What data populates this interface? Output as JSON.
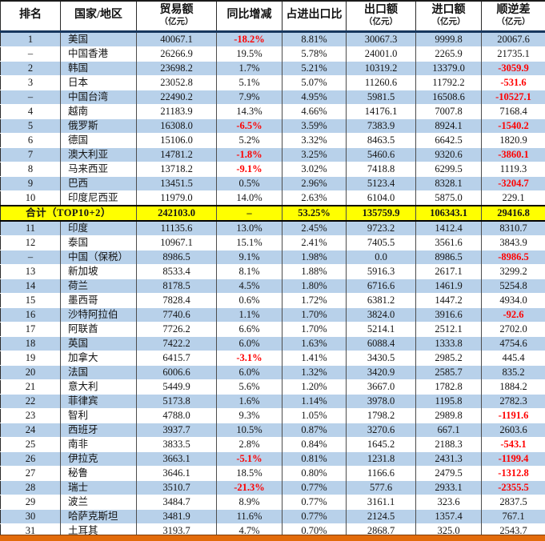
{
  "chart_data": {
    "type": "table",
    "columns": [
      {
        "label": "排名",
        "sub": ""
      },
      {
        "label": "国家/地区",
        "sub": ""
      },
      {
        "label": "贸易额",
        "sub": "（亿元）"
      },
      {
        "label": "同比增减",
        "sub": ""
      },
      {
        "label": "占进出口比",
        "sub": ""
      },
      {
        "label": "出口额",
        "sub": "（亿元）"
      },
      {
        "label": "进口额",
        "sub": "（亿元）"
      },
      {
        "label": "顺逆差",
        "sub": "（亿元）"
      }
    ],
    "rows": [
      {
        "rank": "1",
        "country": "美国",
        "values": [
          "40067.1",
          "-18.2%",
          "8.81%",
          "30067.3",
          "9999.8",
          "20067.6"
        ],
        "bg": "blue"
      },
      {
        "rank": "–",
        "country": "中国香港",
        "values": [
          "26266.9",
          "19.5%",
          "5.78%",
          "24001.0",
          "2265.9",
          "21735.1"
        ],
        "bg": "white"
      },
      {
        "rank": "2",
        "country": "韩国",
        "values": [
          "23698.2",
          "1.7%",
          "5.21%",
          "10319.2",
          "13379.0",
          "-3059.9"
        ],
        "bg": "blue"
      },
      {
        "rank": "3",
        "country": "日本",
        "values": [
          "23052.8",
          "5.1%",
          "5.07%",
          "11260.6",
          "11792.2",
          "-531.6"
        ],
        "bg": "white"
      },
      {
        "rank": "–",
        "country": "中国台湾",
        "values": [
          "22490.2",
          "7.9%",
          "4.95%",
          "5981.5",
          "16508.6",
          "-10527.1"
        ],
        "bg": "blue"
      },
      {
        "rank": "4",
        "country": "越南",
        "values": [
          "21183.9",
          "14.3%",
          "4.66%",
          "14176.1",
          "7007.8",
          "7168.4"
        ],
        "bg": "white"
      },
      {
        "rank": "5",
        "country": "俄罗斯",
        "values": [
          "16308.0",
          "-6.5%",
          "3.59%",
          "7383.9",
          "8924.1",
          "-1540.2"
        ],
        "bg": "blue"
      },
      {
        "rank": "6",
        "country": "德国",
        "values": [
          "15106.0",
          "5.2%",
          "3.32%",
          "8463.5",
          "6642.5",
          "1820.9"
        ],
        "bg": "white"
      },
      {
        "rank": "7",
        "country": "澳大利亚",
        "values": [
          "14781.2",
          "-1.8%",
          "3.25%",
          "5460.6",
          "9320.6",
          "-3860.1"
        ],
        "bg": "blue"
      },
      {
        "rank": "8",
        "country": "马来西亚",
        "values": [
          "13718.2",
          "-9.1%",
          "3.02%",
          "7418.8",
          "6299.5",
          "1119.3"
        ],
        "bg": "white"
      },
      {
        "rank": "9",
        "country": "巴西",
        "values": [
          "13451.5",
          "0.5%",
          "2.96%",
          "5123.4",
          "8328.1",
          "-3204.7"
        ],
        "bg": "blue"
      },
      {
        "rank": "10",
        "country": "印度尼西亚",
        "values": [
          "11979.0",
          "14.0%",
          "2.63%",
          "6104.0",
          "5875.0",
          "229.1"
        ],
        "bg": "white"
      },
      {
        "total": true,
        "label": "合计（TOP10+2）",
        "values": [
          "242103.0",
          "–",
          "53.25%",
          "135759.9",
          "106343.1",
          "29416.8"
        ],
        "bg": "yellow"
      },
      {
        "rank": "11",
        "country": "印度",
        "values": [
          "11135.6",
          "13.0%",
          "2.45%",
          "9723.2",
          "1412.4",
          "8310.7"
        ],
        "bg": "blue"
      },
      {
        "rank": "12",
        "country": "泰国",
        "values": [
          "10967.1",
          "15.1%",
          "2.41%",
          "7405.5",
          "3561.6",
          "3843.9"
        ],
        "bg": "white"
      },
      {
        "rank": "–",
        "country": "中国（保税）",
        "values": [
          "8986.5",
          "9.1%",
          "1.98%",
          "0.0",
          "8986.5",
          "-8986.5"
        ],
        "bg": "blue"
      },
      {
        "rank": "13",
        "country": "新加坡",
        "values": [
          "8533.4",
          "8.1%",
          "1.88%",
          "5916.3",
          "2617.1",
          "3299.2"
        ],
        "bg": "white"
      },
      {
        "rank": "14",
        "country": "荷兰",
        "values": [
          "8178.5",
          "4.5%",
          "1.80%",
          "6716.6",
          "1461.9",
          "5254.8"
        ],
        "bg": "blue"
      },
      {
        "rank": "15",
        "country": "墨西哥",
        "values": [
          "7828.4",
          "0.6%",
          "1.72%",
          "6381.2",
          "1447.2",
          "4934.0"
        ],
        "bg": "white"
      },
      {
        "rank": "16",
        "country": "沙特阿拉伯",
        "values": [
          "7740.6",
          "1.1%",
          "1.70%",
          "3824.0",
          "3916.6",
          "-92.6"
        ],
        "bg": "blue"
      },
      {
        "rank": "17",
        "country": "阿联酋",
        "values": [
          "7726.2",
          "6.6%",
          "1.70%",
          "5214.1",
          "2512.1",
          "2702.0"
        ],
        "bg": "white"
      },
      {
        "rank": "18",
        "country": "英国",
        "values": [
          "7422.2",
          "6.0%",
          "1.63%",
          "6088.4",
          "1333.8",
          "4754.6"
        ],
        "bg": "blue"
      },
      {
        "rank": "19",
        "country": "加拿大",
        "values": [
          "6415.7",
          "-3.1%",
          "1.41%",
          "3430.5",
          "2985.2",
          "445.4"
        ],
        "bg": "white"
      },
      {
        "rank": "20",
        "country": "法国",
        "values": [
          "6006.6",
          "6.0%",
          "1.32%",
          "3420.9",
          "2585.7",
          "835.2"
        ],
        "bg": "blue"
      },
      {
        "rank": "21",
        "country": "意大利",
        "values": [
          "5449.9",
          "5.6%",
          "1.20%",
          "3667.0",
          "1782.8",
          "1884.2"
        ],
        "bg": "white"
      },
      {
        "rank": "22",
        "country": "菲律宾",
        "values": [
          "5173.8",
          "1.6%",
          "1.14%",
          "3978.0",
          "1195.8",
          "2782.3"
        ],
        "bg": "blue"
      },
      {
        "rank": "23",
        "country": "智利",
        "values": [
          "4788.0",
          "9.3%",
          "1.05%",
          "1798.2",
          "2989.8",
          "-1191.6"
        ],
        "bg": "white"
      },
      {
        "rank": "24",
        "country": "西班牙",
        "values": [
          "3937.7",
          "10.5%",
          "0.87%",
          "3270.6",
          "667.1",
          "2603.6"
        ],
        "bg": "blue"
      },
      {
        "rank": "25",
        "country": "南非",
        "values": [
          "3833.5",
          "2.8%",
          "0.84%",
          "1645.2",
          "2188.3",
          "-543.1"
        ],
        "bg": "white"
      },
      {
        "rank": "26",
        "country": "伊拉克",
        "values": [
          "3663.1",
          "-5.1%",
          "0.81%",
          "1231.8",
          "2431.3",
          "-1199.4"
        ],
        "bg": "blue"
      },
      {
        "rank": "27",
        "country": "秘鲁",
        "values": [
          "3646.1",
          "18.5%",
          "0.80%",
          "1166.6",
          "2479.5",
          "-1312.8"
        ],
        "bg": "white"
      },
      {
        "rank": "28",
        "country": "瑞士",
        "values": [
          "3510.7",
          "-21.3%",
          "0.77%",
          "577.6",
          "2933.1",
          "-2355.5"
        ],
        "bg": "blue"
      },
      {
        "rank": "29",
        "country": "波兰",
        "values": [
          "3484.7",
          "8.9%",
          "0.77%",
          "3161.1",
          "323.6",
          "2837.5"
        ],
        "bg": "white"
      },
      {
        "rank": "30",
        "country": "哈萨克斯坦",
        "values": [
          "3481.9",
          "11.6%",
          "0.77%",
          "2124.5",
          "1357.4",
          "767.1"
        ],
        "bg": "blue"
      },
      {
        "rank": "31",
        "country": "土耳其",
        "values": [
          "3193.7",
          "4.7%",
          "0.70%",
          "2868.7",
          "325.0",
          "2543.7"
        ],
        "bg": "white"
      }
    ]
  },
  "colors": {
    "row_highlight": "#b8d1ea",
    "total_row_bg": "#ffff00",
    "negative_text": "#ff0000",
    "header_rule": "#17375e",
    "bottom_bar": "#e26b0a"
  }
}
